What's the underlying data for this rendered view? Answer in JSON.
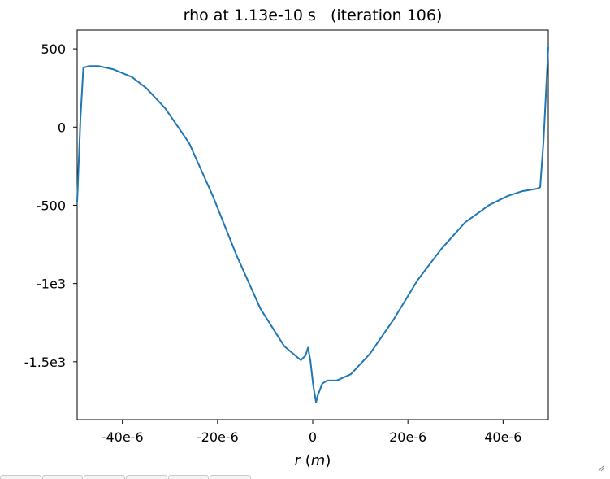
{
  "chart_data": {
    "type": "line",
    "title": "rho at 1.13e-10 s   (iteration 106)",
    "xlabel": "r",
    "xlabel_unit": "m",
    "ylabel": "",
    "xlim": [
      -4.95e-05,
      4.95e-05
    ],
    "ylim": [
      -1870,
      620
    ],
    "xticks": [
      {
        "value": -4e-05,
        "label": "-40e-6"
      },
      {
        "value": -2e-05,
        "label": "-20e-6"
      },
      {
        "value": 0,
        "label": "0"
      },
      {
        "value": 2e-05,
        "label": "20e-6"
      },
      {
        "value": 4e-05,
        "label": "40e-6"
      }
    ],
    "yticks": [
      {
        "value": 500,
        "label": "500"
      },
      {
        "value": 0,
        "label": "0"
      },
      {
        "value": -500,
        "label": "-500"
      },
      {
        "value": -1000,
        "label": "-1e3"
      },
      {
        "value": -1500,
        "label": "-1.5e3"
      }
    ],
    "grid": false,
    "color": "#1f77b4",
    "series": [
      {
        "x": [
          -4.95e-05,
          -4.88e-05,
          -4.82e-05,
          -4.7e-05,
          -4.5e-05,
          -4.2e-05,
          -3.8e-05,
          -3.5e-05,
          -3.1e-05,
          -2.6e-05,
          -2.1e-05,
          -1.6e-05,
          -1.1e-05,
          -6e-06,
          -2.5e-06,
          -1.5e-06,
          -1e-06,
          -5e-07,
          1e-07,
          7e-07,
          1e-06,
          2e-06,
          3e-06,
          5e-06,
          8e-06,
          1.2e-05,
          1.7e-05,
          2.2e-05,
          2.7e-05,
          3.2e-05,
          3.7e-05,
          4.1e-05,
          4.4e-05,
          4.7e-05,
          4.78e-05,
          4.85e-05,
          4.95e-05
        ],
        "y": [
          -480,
          60,
          380,
          390,
          390,
          370,
          320,
          250,
          120,
          -100,
          -440,
          -820,
          -1160,
          -1400,
          -1490,
          -1460,
          -1410,
          -1490,
          -1650,
          -1760,
          -1720,
          -1640,
          -1620,
          -1620,
          -1580,
          -1450,
          -1230,
          -980,
          -780,
          -610,
          -500,
          -440,
          -410,
          -395,
          -385,
          -90,
          510
        ]
      }
    ]
  },
  "toolbar": {
    "buttons": [
      "",
      "",
      "",
      "",
      "",
      ""
    ]
  }
}
